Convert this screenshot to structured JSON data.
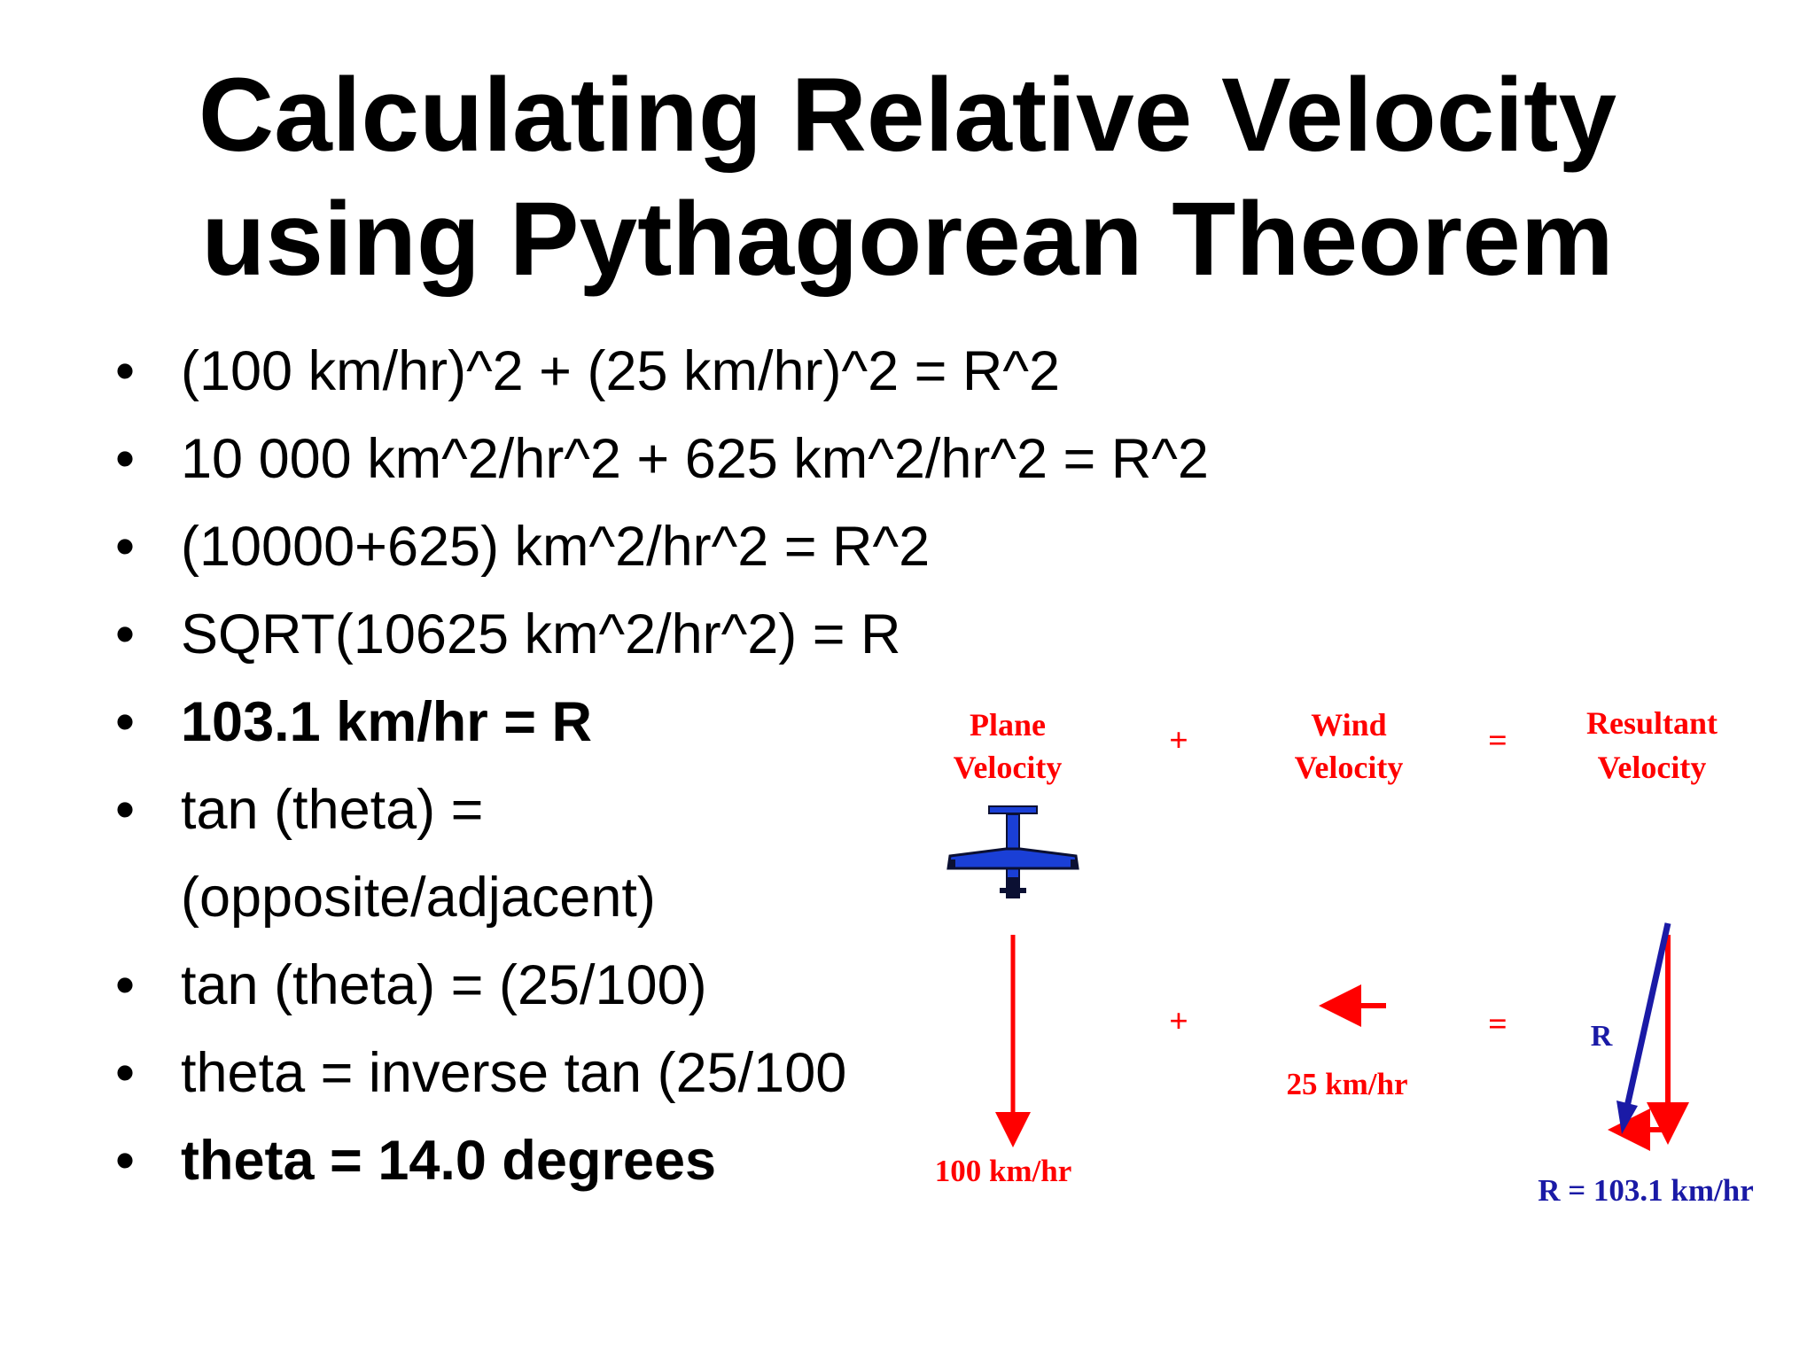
{
  "title": {
    "line1": "Calculating Relative Velocity",
    "line2": "using Pythagorean Theorem"
  },
  "bullets": [
    {
      "text": "(100 km/hr)^2 + (25 km/hr)^2 = R^2",
      "bold": false
    },
    {
      "text": "10 000 km^2/hr^2 + 625 km^2/hr^2 = R^2",
      "bold": false
    },
    {
      "text": "(10000+625) km^2/hr^2 = R^2",
      "bold": false
    },
    {
      "text": "SQRT(10625 km^2/hr^2) = R",
      "bold": false
    },
    {
      "text": "103.1 km/hr = R",
      "bold": true
    },
    {
      "text": "tan (theta) =",
      "bold": false
    },
    {
      "text": "(opposite/adjacent)",
      "bold": false,
      "continuation": true
    },
    {
      "text": "tan (theta) = (25/100)",
      "bold": false
    },
    {
      "text": "theta = inverse tan (25/100",
      "bold": false
    },
    {
      "text": "theta = 14.0 degrees",
      "bold": true
    }
  ],
  "bullet_symbol": "•",
  "diagram": {
    "headers": {
      "plane": [
        "Plane",
        "Velocity"
      ],
      "wind": [
        "Wind",
        "Velocity"
      ],
      "resultant": [
        "Resultant",
        "Velocity"
      ]
    },
    "plus": "+",
    "equals": "=",
    "plane_label": "100 km/hr",
    "wind_label": "25 km/hr",
    "resultant_symbol": "R",
    "resultant_label": "R = 103.1 km/hr",
    "colors": {
      "red": "#ff0000",
      "blue": "#1a1aa6",
      "plane_body": "#1a3fd6",
      "plane_dark": "#0b1033"
    }
  }
}
